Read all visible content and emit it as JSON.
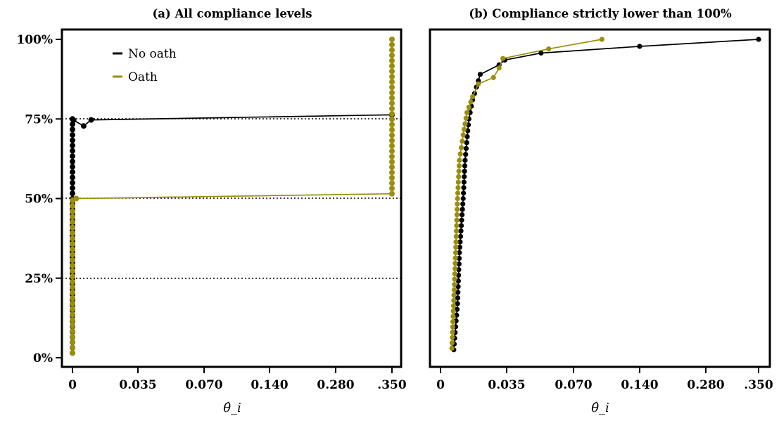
{
  "chart_data": [
    {
      "type": "line",
      "title": "(a) All compliance levels",
      "xlabel": "θ̂_i",
      "ylabel": "",
      "x_tick_labels": [
        "0",
        "0.035",
        "0.070",
        "0.140",
        "0.280",
        ".350"
      ],
      "x_scale": "non-linear (categorical spacing of listed ticks)",
      "y_tick_labels": [
        "0%",
        "25%",
        "50%",
        "75%",
        "100%"
      ],
      "ylim": [
        0,
        100
      ],
      "reference_lines_y": [
        25,
        50,
        75
      ],
      "legend": {
        "position": "top-left",
        "entries": [
          "No oath",
          "Oath"
        ]
      },
      "series": [
        {
          "name": "No oath",
          "color": "#000000",
          "points": [
            [
              0.0,
              1.5
            ],
            [
              0.0,
              75.0
            ],
            [
              0.0006,
              74.6
            ],
            [
              0.006,
              72.8
            ],
            [
              0.01,
              74.7
            ],
            [
              0.35,
              76.3
            ]
          ]
        },
        {
          "name": "Oath",
          "color": "#9b8e0c",
          "points": [
            [
              0.0,
              1.5
            ],
            [
              0.0,
              49.5
            ],
            [
              0.002,
              50.0
            ],
            [
              0.35,
              51.5
            ],
            [
              0.35,
              100.0
            ]
          ]
        }
      ]
    },
    {
      "type": "line",
      "title": "(b) Compliance strictly lower than 100%",
      "xlabel": "θ̂_i",
      "ylabel": "",
      "x_tick_labels": [
        "0",
        "0.035",
        "0.070",
        "0.140",
        "0.280",
        ".350"
      ],
      "x_scale": "non-linear (categorical spacing of listed ticks)",
      "ylim": [
        0,
        100
      ],
      "series": [
        {
          "name": "No oath",
          "color": "#000000",
          "points": [
            [
              0.007,
              2.5
            ],
            [
              0.009,
              17
            ],
            [
              0.01,
              33
            ],
            [
              0.012,
              50
            ],
            [
              0.013,
              62
            ],
            [
              0.015,
              75
            ],
            [
              0.017,
              81
            ],
            [
              0.019,
              85
            ],
            [
              0.021,
              89
            ],
            [
              0.031,
              92
            ],
            [
              0.034,
              93.5
            ],
            [
              0.053,
              95.7
            ],
            [
              0.14,
              97.8
            ],
            [
              0.35,
              100
            ]
          ]
        },
        {
          "name": "Oath",
          "color": "#9b8e0c",
          "points": [
            [
              0.006,
              3
            ],
            [
              0.007,
              18
            ],
            [
              0.008,
              33
            ],
            [
              0.009,
              50
            ],
            [
              0.01,
              62
            ],
            [
              0.012,
              70
            ],
            [
              0.014,
              77
            ],
            [
              0.017,
              82
            ],
            [
              0.02,
              86
            ],
            [
              0.028,
              88
            ],
            [
              0.031,
              91
            ],
            [
              0.033,
              94
            ],
            [
              0.057,
              97
            ],
            [
              0.1,
              100
            ]
          ]
        }
      ]
    }
  ]
}
